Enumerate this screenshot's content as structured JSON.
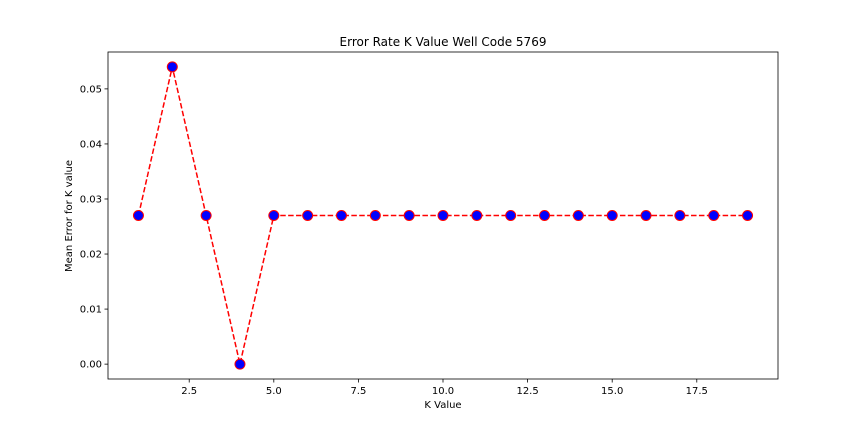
{
  "chart_data": {
    "type": "line",
    "title": "Error Rate K Value Well Code 5769",
    "xlabel": "K Value",
    "ylabel": "Mean Error for K value",
    "x": [
      1,
      2,
      3,
      4,
      5,
      6,
      7,
      8,
      9,
      10,
      11,
      12,
      13,
      14,
      15,
      16,
      17,
      18,
      19
    ],
    "series": [
      {
        "values": [
          0.027,
          0.054,
          0.027,
          0.0,
          0.027,
          0.027,
          0.027,
          0.027,
          0.027,
          0.027,
          0.027,
          0.027,
          0.027,
          0.027,
          0.027,
          0.027,
          0.027,
          0.027,
          0.027
        ],
        "line_color": "#ff0000",
        "line_style": "dashed",
        "marker": "circle",
        "marker_face_color": "#0000ff",
        "marker_edge_color": "#ff0000"
      }
    ],
    "xlim": [
      0.1,
      19.9
    ],
    "ylim": [
      -0.0027,
      0.0567
    ],
    "xticks": [
      2.5,
      5.0,
      7.5,
      10.0,
      12.5,
      15.0,
      17.5
    ],
    "xtick_labels": [
      "2.5",
      "5.0",
      "7.5",
      "10.0",
      "12.5",
      "15.0",
      "17.5"
    ],
    "yticks": [
      0.0,
      0.01,
      0.02,
      0.03,
      0.04,
      0.05
    ],
    "ytick_labels": [
      "0.00",
      "0.01",
      "0.02",
      "0.03",
      "0.04",
      "0.05"
    ],
    "grid": false,
    "legend": "none"
  }
}
